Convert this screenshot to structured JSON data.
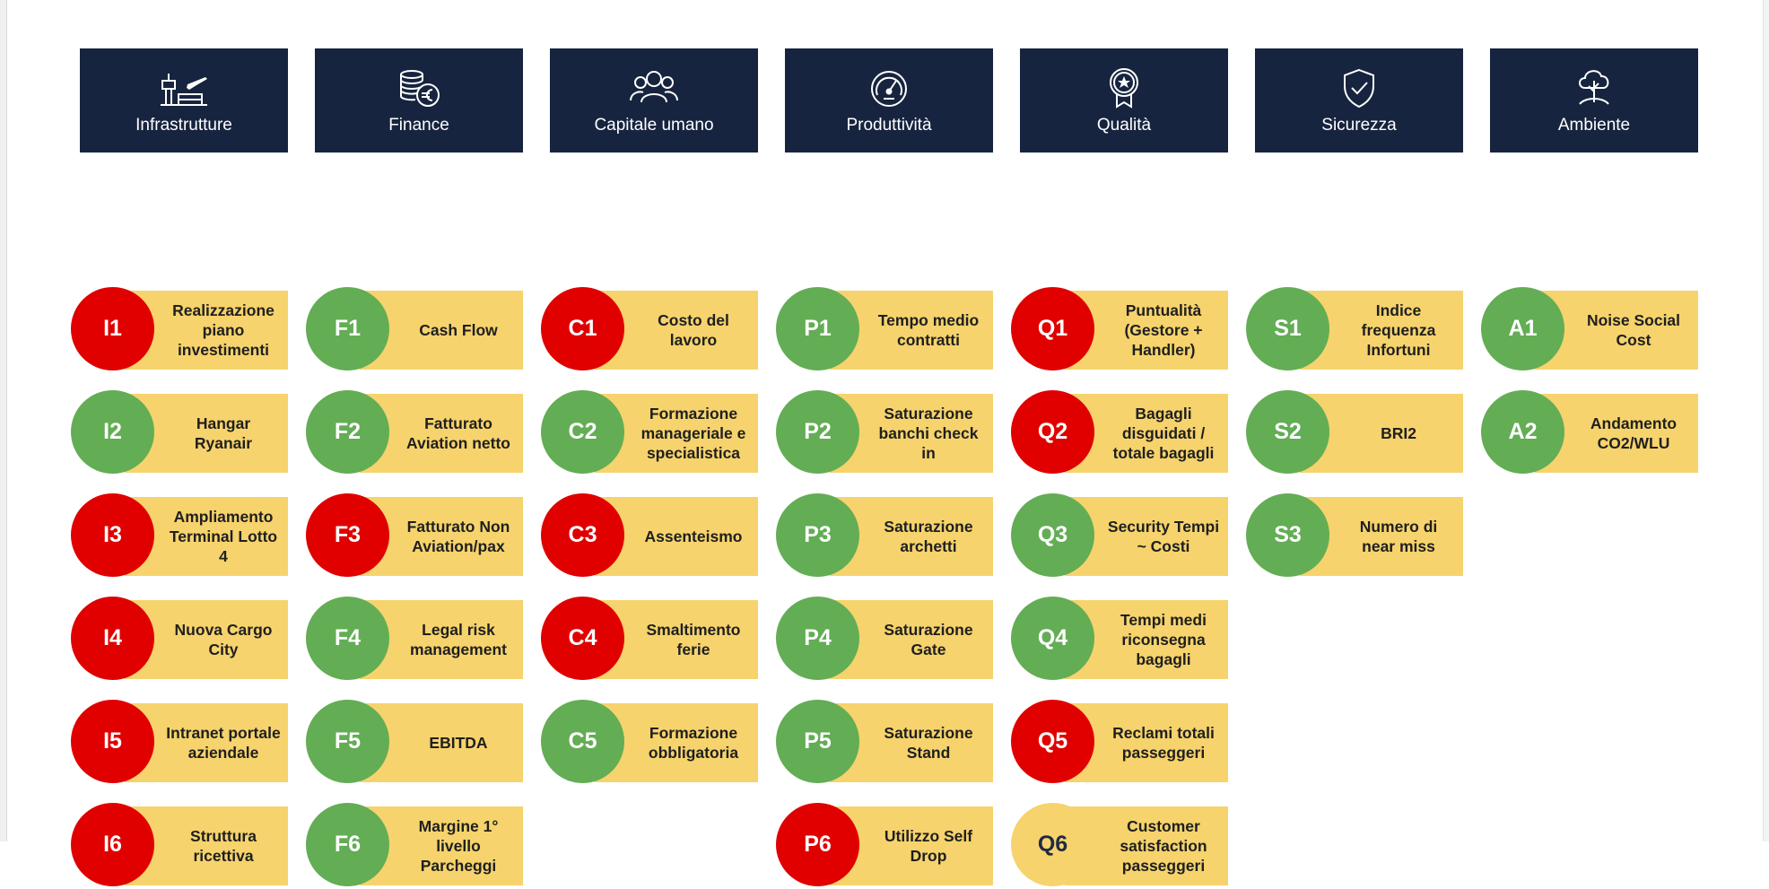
{
  "colors": {
    "red": "#e00000",
    "green": "#63ad55",
    "yellow": "#f6d36c",
    "header_bg": "#17243f",
    "label_bg": "#f6d36c"
  },
  "columns": [
    {
      "title": "Infrastrutture",
      "icon": "airport-icon",
      "items": [
        {
          "code": "I1",
          "label": "Realizzazione piano investimenti",
          "status": "red"
        },
        {
          "code": "I2",
          "label": "Hangar Ryanair",
          "status": "green"
        },
        {
          "code": "I3",
          "label": "Ampliamento Terminal Lotto 4",
          "status": "red"
        },
        {
          "code": "I4",
          "label": "Nuova Cargo City",
          "status": "red"
        },
        {
          "code": "I5",
          "label": "Intranet portale aziendale",
          "status": "red"
        },
        {
          "code": "I6",
          "label": "Struttura ricettiva",
          "status": "red"
        }
      ]
    },
    {
      "title": "Finance",
      "icon": "coins-euro-icon",
      "items": [
        {
          "code": "F1",
          "label": "Cash Flow",
          "status": "green"
        },
        {
          "code": "F2",
          "label": "Fatturato Aviation netto",
          "status": "green"
        },
        {
          "code": "F3",
          "label": "Fatturato Non Aviation/pax",
          "status": "red"
        },
        {
          "code": "F4",
          "label": "Legal risk management",
          "status": "green"
        },
        {
          "code": "F5",
          "label": "EBITDA",
          "status": "green"
        },
        {
          "code": "F6",
          "label": "Margine 1° livello Parcheggi",
          "status": "green"
        }
      ]
    },
    {
      "title": "Capitale umano",
      "icon": "people-icon",
      "items": [
        {
          "code": "C1",
          "label": "Costo del lavoro",
          "status": "red"
        },
        {
          "code": "C2",
          "label": "Formazione manageriale e specialistica",
          "status": "green"
        },
        {
          "code": "C3",
          "label": "Assenteismo",
          "status": "red"
        },
        {
          "code": "C4",
          "label": "Smaltimento ferie",
          "status": "red"
        },
        {
          "code": "C5",
          "label": "Formazione obbligatoria",
          "status": "green"
        }
      ]
    },
    {
      "title": "Produttività",
      "icon": "speedometer-icon",
      "items": [
        {
          "code": "P1",
          "label": "Tempo medio contratti",
          "status": "green"
        },
        {
          "code": "P2",
          "label": "Saturazione banchi check in",
          "status": "green"
        },
        {
          "code": "P3",
          "label": "Saturazione archetti",
          "status": "green"
        },
        {
          "code": "P4",
          "label": "Saturazione Gate",
          "status": "green"
        },
        {
          "code": "P5",
          "label": "Saturazione Stand",
          "status": "green"
        },
        {
          "code": "P6",
          "label": "Utilizzo Self Drop",
          "status": "red"
        }
      ]
    },
    {
      "title": "Qualità",
      "icon": "award-badge-icon",
      "items": [
        {
          "code": "Q1",
          "label": "Puntualità (Gestore + Handler)",
          "status": "red"
        },
        {
          "code": "Q2",
          "label": "Bagagli disguidati / totale bagagli",
          "status": "red"
        },
        {
          "code": "Q3",
          "label": "Security Tempi ~ Costi",
          "status": "green"
        },
        {
          "code": "Q4",
          "label": "Tempi medi riconsegna bagagli",
          "status": "green"
        },
        {
          "code": "Q5",
          "label": "Reclami totali passeggeri",
          "status": "red"
        },
        {
          "code": "Q6",
          "label": "Customer satisfaction passeggeri",
          "status": "yellow"
        }
      ]
    },
    {
      "title": "Sicurezza",
      "icon": "shield-check-icon",
      "items": [
        {
          "code": "S1",
          "label": "Indice frequenza Infortuni",
          "status": "green"
        },
        {
          "code": "S2",
          "label": "BRI2",
          "status": "green"
        },
        {
          "code": "S3",
          "label": "Numero di near miss",
          "status": "green"
        }
      ]
    },
    {
      "title": "Ambiente",
      "icon": "tree-icon",
      "items": [
        {
          "code": "A1",
          "label": "Noise Social Cost",
          "status": "green"
        },
        {
          "code": "A2",
          "label": "Andamento CO2/WLU",
          "status": "green"
        }
      ]
    }
  ]
}
